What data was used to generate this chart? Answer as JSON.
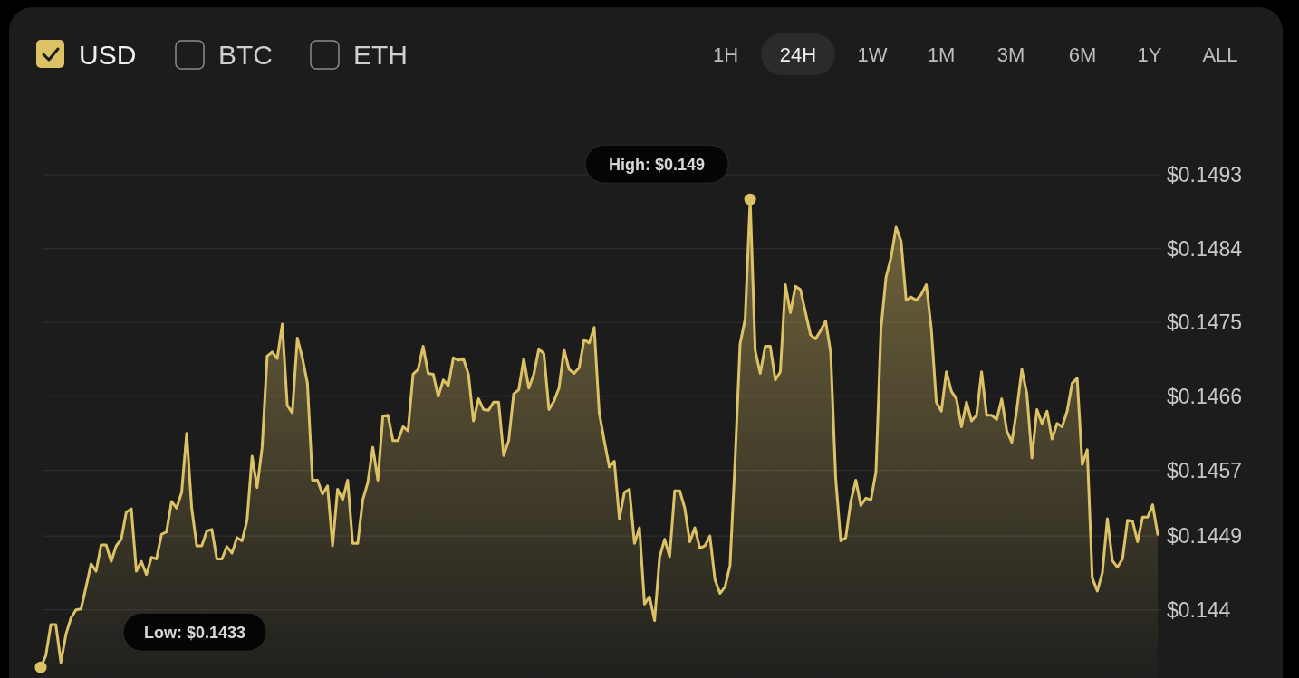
{
  "chart_data": {
    "type": "area",
    "categories": [
      null,
      null,
      null,
      null,
      null,
      null,
      null,
      null,
      null,
      null,
      null,
      null,
      null,
      null,
      null,
      null,
      null,
      null,
      null,
      null,
      null,
      null,
      null,
      null,
      null,
      null,
      null,
      null,
      null,
      null,
      null,
      null,
      null,
      null,
      null,
      null,
      null,
      null,
      null,
      null,
      null,
      null,
      null,
      null,
      null,
      null,
      null,
      null,
      null,
      null,
      null,
      null,
      null,
      null,
      null,
      null,
      null,
      null,
      null,
      null,
      null,
      null,
      null,
      null,
      null,
      null,
      null,
      null,
      null,
      null,
      null,
      null,
      null,
      null,
      null,
      null,
      null,
      null,
      null,
      null,
      null,
      null,
      null,
      null,
      null,
      null,
      null,
      null,
      null,
      null,
      null,
      null,
      null,
      null,
      null,
      null,
      null,
      null,
      null,
      null,
      null,
      null,
      null,
      null,
      null,
      null,
      null,
      null,
      null,
      null,
      null,
      null,
      null,
      null,
      null,
      null,
      null,
      null,
      null,
      null,
      null,
      null,
      null,
      null,
      null,
      null,
      null,
      null,
      null,
      null,
      null,
      null,
      null,
      null,
      null,
      null,
      null,
      null,
      null,
      null,
      null,
      null,
      null,
      null,
      null,
      null,
      null,
      null,
      null,
      null,
      null,
      null,
      null,
      null,
      null,
      null,
      null,
      null,
      null,
      null,
      null,
      null,
      null,
      null,
      null,
      null,
      null,
      null,
      null,
      null,
      null,
      null,
      null,
      null,
      null,
      null,
      null,
      null,
      null,
      null,
      null,
      null,
      null,
      null,
      null,
      null,
      null,
      null,
      null,
      null,
      null,
      null,
      null,
      null,
      null,
      null,
      null,
      null,
      null,
      null,
      null,
      null,
      null,
      null,
      null,
      null,
      null,
      null,
      null,
      null,
      null,
      null,
      null,
      null,
      null,
      null,
      null,
      null,
      null,
      null,
      null,
      null,
      null
    ],
    "series": [
      {
        "name": "USD",
        "color": "#dcc165",
        "values": [
          0.1433,
          0.14344,
          0.14382,
          0.14382,
          0.14336,
          0.1437,
          0.1439,
          0.144,
          0.14401,
          0.14428,
          0.14456,
          0.14447,
          0.14479,
          0.14479,
          0.14459,
          0.14478,
          0.14486,
          0.14519,
          0.14523,
          0.14447,
          0.14459,
          0.14443,
          0.14464,
          0.14462,
          0.14492,
          0.14495,
          0.14532,
          0.14524,
          0.14543,
          0.14615,
          0.14524,
          0.14478,
          0.14478,
          0.14496,
          0.14498,
          0.14462,
          0.14462,
          0.14477,
          0.14469,
          0.14488,
          0.14484,
          0.14509,
          0.14587,
          0.14549,
          0.14598,
          0.14709,
          0.14714,
          0.14706,
          0.14748,
          0.14649,
          0.1464,
          0.14731,
          0.14707,
          0.14676,
          0.14558,
          0.14558,
          0.14541,
          0.14551,
          0.14478,
          0.14547,
          0.14534,
          0.14558,
          0.14481,
          0.14481,
          0.14534,
          0.14555,
          0.14598,
          0.14558,
          0.14636,
          0.14637,
          0.14606,
          0.14606,
          0.14623,
          0.14618,
          0.14687,
          0.14693,
          0.14721,
          0.14688,
          0.14687,
          0.1466,
          0.1468,
          0.14673,
          0.14707,
          0.14704,
          0.14706,
          0.14687,
          0.1463,
          0.14657,
          0.14644,
          0.14643,
          0.14653,
          0.14653,
          0.14588,
          0.14606,
          0.14663,
          0.14668,
          0.14706,
          0.1467,
          0.14687,
          0.14718,
          0.14712,
          0.14644,
          0.14654,
          0.1467,
          0.14717,
          0.14693,
          0.14688,
          0.14695,
          0.14729,
          0.14725,
          0.14744,
          0.1464,
          0.14606,
          0.14574,
          0.14581,
          0.14511,
          0.14543,
          0.14547,
          0.14481,
          0.145,
          0.14407,
          0.14416,
          0.14387,
          0.14464,
          0.14486,
          0.14465,
          0.14545,
          0.14545,
          0.14524,
          0.14483,
          0.145,
          0.14475,
          0.14478,
          0.1449,
          0.14437,
          0.1442,
          0.14428,
          0.14454,
          0.14581,
          0.14724,
          0.14754,
          0.149,
          0.14716,
          0.14688,
          0.14721,
          0.14721,
          0.1468,
          0.1469,
          0.14796,
          0.14762,
          0.14794,
          0.1479,
          0.14762,
          0.14735,
          0.1473,
          0.1474,
          0.14752,
          0.14714,
          0.1456,
          0.14484,
          0.14488,
          0.14532,
          0.14558,
          0.14527,
          0.14536,
          0.14534,
          0.14568,
          0.14742,
          0.14805,
          0.14829,
          0.14866,
          0.14849,
          0.14777,
          0.14781,
          0.14777,
          0.14784,
          0.14796,
          0.14743,
          0.14653,
          0.14642,
          0.1469,
          0.14666,
          0.14657,
          0.14623,
          0.14653,
          0.1463,
          0.14637,
          0.1469,
          0.14637,
          0.14637,
          0.14632,
          0.14657,
          0.14618,
          0.14604,
          0.14644,
          0.14693,
          0.14663,
          0.14585,
          0.14644,
          0.14627,
          0.14642,
          0.14608,
          0.14627,
          0.14623,
          0.14642,
          0.14676,
          0.14682,
          0.14577,
          0.14595,
          0.14439,
          0.14423,
          0.14445,
          0.14511,
          0.1446,
          0.14452,
          0.14462,
          0.14509,
          0.14508,
          0.14483,
          0.14513,
          0.14513,
          0.14528,
          0.14492
        ]
      }
    ],
    "ylim": [
      0.14317,
      0.1493
    ],
    "yticks": [
      {
        "value": 0.144,
        "label": "$0.144"
      },
      {
        "value": 0.1449,
        "label": "$0.1449"
      },
      {
        "value": 0.1457,
        "label": "$0.1457"
      },
      {
        "value": 0.1466,
        "label": "$0.1466"
      },
      {
        "value": 0.1475,
        "label": "$0.1475"
      },
      {
        "value": 0.1484,
        "label": "$0.1484"
      },
      {
        "value": 0.1493,
        "label": "$0.1493"
      }
    ],
    "grid": "y",
    "legend": "top left",
    "tick_labels": "y",
    "annotations": [
      "High: $0.149",
      "Low: $0.1433",
      "BTC",
      "ETH",
      "1H",
      "24H",
      "1W",
      "1M",
      "3M",
      "6M",
      "1Y",
      "ALL"
    ]
  }
}
